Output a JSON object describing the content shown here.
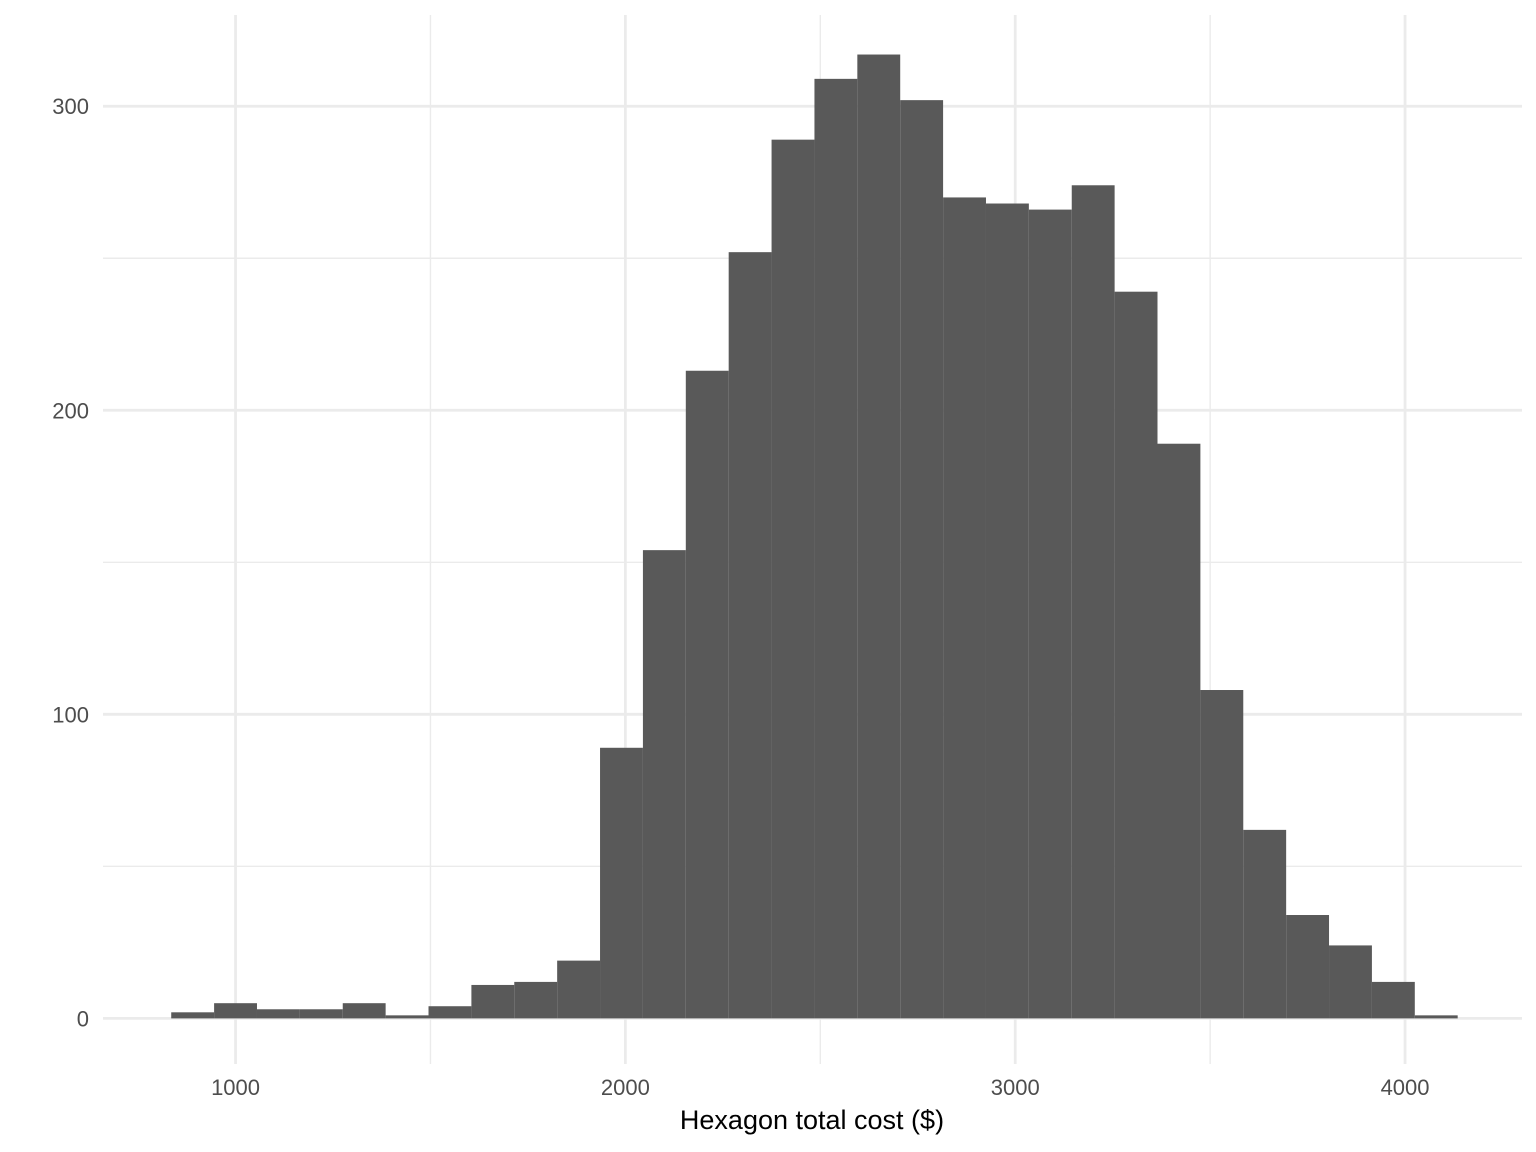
{
  "chart_data": {
    "type": "bar",
    "subtype": "histogram",
    "title": "",
    "xlabel": "Hexagon total cost ($)",
    "ylabel": "",
    "xlim": [
      660,
      4300
    ],
    "ylim": [
      -15,
      330
    ],
    "x_ticks": [
      1000,
      2000,
      3000,
      4000
    ],
    "x_tick_labels": [
      "1000",
      "2000",
      "3000",
      "4000"
    ],
    "x_minor_ticks": [
      1500,
      2500,
      3500
    ],
    "y_ticks": [
      0,
      100,
      200,
      300
    ],
    "y_tick_labels": [
      "0",
      "100",
      "200",
      "300"
    ],
    "y_minor_ticks": [
      50,
      150,
      250
    ],
    "bin_width": 110,
    "bins": [
      {
        "start": 835,
        "end": 945,
        "count": 2
      },
      {
        "start": 945,
        "end": 1055,
        "count": 5
      },
      {
        "start": 1055,
        "end": 1165,
        "count": 3
      },
      {
        "start": 1165,
        "end": 1275,
        "count": 3
      },
      {
        "start": 1275,
        "end": 1385,
        "count": 5
      },
      {
        "start": 1385,
        "end": 1495,
        "count": 1
      },
      {
        "start": 1495,
        "end": 1605,
        "count": 4
      },
      {
        "start": 1605,
        "end": 1715,
        "count": 11
      },
      {
        "start": 1715,
        "end": 1825,
        "count": 12
      },
      {
        "start": 1825,
        "end": 1935,
        "count": 19
      },
      {
        "start": 1935,
        "end": 2045,
        "count": 89
      },
      {
        "start": 2045,
        "end": 2155,
        "count": 154
      },
      {
        "start": 2155,
        "end": 2265,
        "count": 213
      },
      {
        "start": 2265,
        "end": 2375,
        "count": 252
      },
      {
        "start": 2375,
        "end": 2485,
        "count": 289
      },
      {
        "start": 2485,
        "end": 2595,
        "count": 309
      },
      {
        "start": 2595,
        "end": 2705,
        "count": 317
      },
      {
        "start": 2705,
        "end": 2815,
        "count": 302
      },
      {
        "start": 2815,
        "end": 2925,
        "count": 270
      },
      {
        "start": 2925,
        "end": 3035,
        "count": 268
      },
      {
        "start": 3035,
        "end": 3145,
        "count": 266
      },
      {
        "start": 3145,
        "end": 3255,
        "count": 274
      },
      {
        "start": 3255,
        "end": 3365,
        "count": 239
      },
      {
        "start": 3365,
        "end": 3475,
        "count": 189
      },
      {
        "start": 3475,
        "end": 3585,
        "count": 108
      },
      {
        "start": 3585,
        "end": 3695,
        "count": 62
      },
      {
        "start": 3695,
        "end": 3805,
        "count": 34
      },
      {
        "start": 3805,
        "end": 3915,
        "count": 24
      },
      {
        "start": 3915,
        "end": 4025,
        "count": 12
      },
      {
        "start": 4025,
        "end": 4135,
        "count": 1
      }
    ],
    "grid": true,
    "legend": "none",
    "bar_color": "#595959",
    "grid_color": "#ebebeb",
    "tick_label_color": "#4d4d4d",
    "axis_label_color": "#000000"
  }
}
